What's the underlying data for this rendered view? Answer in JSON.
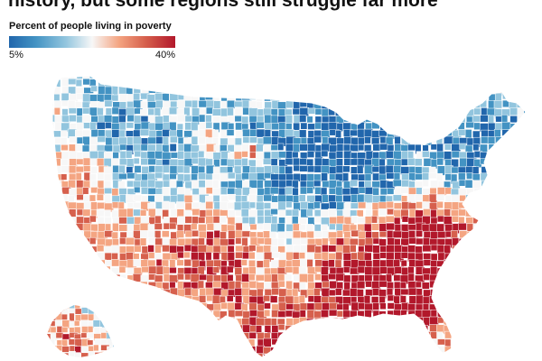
{
  "headline": "history, but some regions still struggle far more",
  "legend": {
    "title": "Percent of people living in poverty",
    "min_label": "5%",
    "max_label": "40%",
    "min_value": 5,
    "max_value": 40,
    "colors": [
      "#2166ac",
      "#4393c3",
      "#92c5de",
      "#f7f7f7",
      "#f4a582",
      "#d6604d",
      "#b2182b"
    ]
  },
  "map": {
    "type": "choropleth",
    "geography": "United States counties",
    "regions": [
      {
        "name": "Pacific Northwest",
        "level": "mixed-low"
      },
      {
        "name": "California",
        "level": "mixed"
      },
      {
        "name": "Nevada / Utah",
        "level": "low"
      },
      {
        "name": "Northern Plains",
        "level": "low"
      },
      {
        "name": "Midwest",
        "level": "low"
      },
      {
        "name": "Northeast",
        "level": "low"
      },
      {
        "name": "Southwest / Four Corners",
        "level": "high"
      },
      {
        "name": "Texas",
        "level": "mixed-high"
      },
      {
        "name": "Mississippi Delta",
        "level": "very-high"
      },
      {
        "name": "Appalachia",
        "level": "high"
      },
      {
        "name": "Southeast",
        "level": "high"
      },
      {
        "name": "Florida",
        "level": "mixed"
      },
      {
        "name": "Alaska",
        "level": "mixed-high"
      }
    ]
  }
}
